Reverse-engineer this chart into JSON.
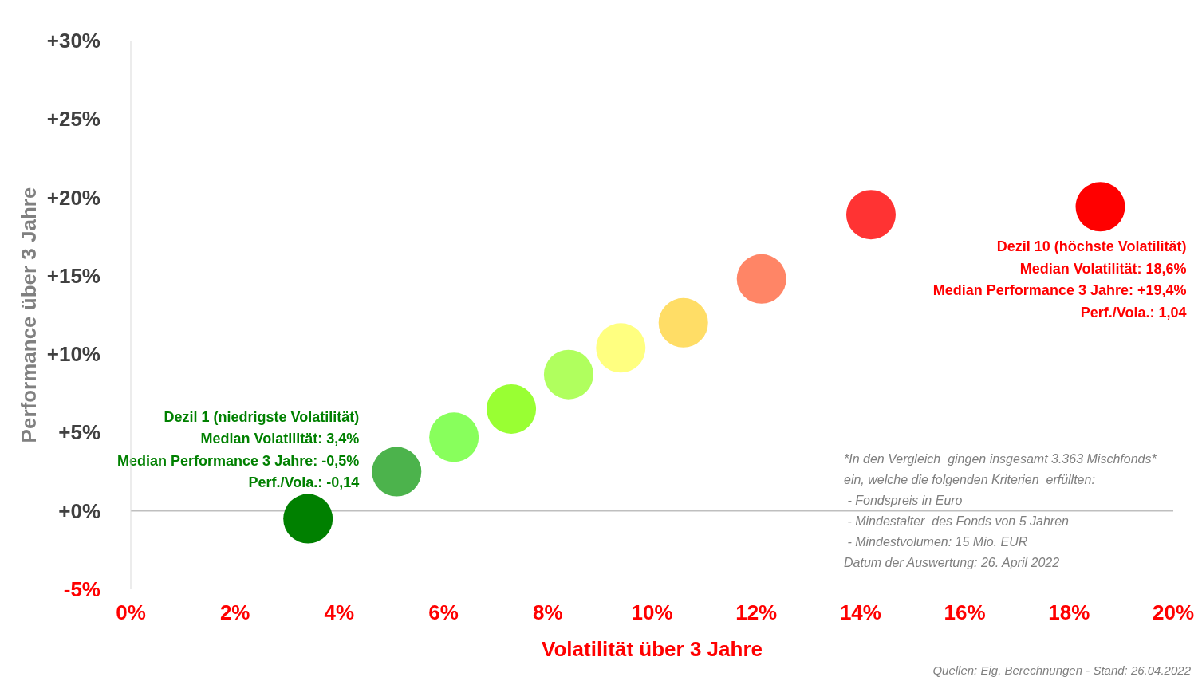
{
  "chart_data": {
    "type": "scatter",
    "xlabel": "Volatilität  über 3 Jahre",
    "ylabel": "Performance über 3 Jahre",
    "x": [
      3.4,
      5.1,
      6.2,
      7.3,
      8.4,
      9.4,
      10.6,
      12.1,
      14.2,
      18.6
    ],
    "series": [
      {
        "values": [
          -0.5,
          2.5,
          4.7,
          6.5,
          8.7,
          10.4,
          12.0,
          14.8,
          18.9,
          19.4
        ],
        "colors": [
          "#008000",
          "#4cb34c",
          "#88ff5c",
          "#99ff33",
          "#b0ff5e",
          "#ffff80",
          "#ffdd66",
          "#ff8566",
          "#ff3333",
          "#ff0000"
        ]
      }
    ],
    "marker": "circle",
    "xlim": [
      0,
      20
    ],
    "xticks": [
      {
        "value": 0,
        "label": "0%"
      },
      {
        "value": 2,
        "label": "2%"
      },
      {
        "value": 4,
        "label": "4%"
      },
      {
        "value": 6,
        "label": "6%"
      },
      {
        "value": 8,
        "label": "8%"
      },
      {
        "value": 10,
        "label": "10%"
      },
      {
        "value": 12,
        "label": "12%"
      },
      {
        "value": 14,
        "label": "14%"
      },
      {
        "value": 16,
        "label": "16%"
      },
      {
        "value": 18,
        "label": "18%"
      },
      {
        "value": 20,
        "label": "20%"
      }
    ],
    "ylim": [
      -5,
      30
    ],
    "yticks": [
      {
        "value": -5,
        "label": "-5%"
      },
      {
        "value": 0,
        "label": "+0%"
      },
      {
        "value": 5,
        "label": "+5%"
      },
      {
        "value": 10,
        "label": "+10%"
      },
      {
        "value": 15,
        "label": "+15%"
      },
      {
        "value": 20,
        "label": "+20%"
      },
      {
        "value": 25,
        "label": "+25%"
      },
      {
        "value": 30,
        "label": "+30%"
      }
    ],
    "ref_lines": [
      {
        "axis": "y",
        "value": 0,
        "color": "#bfbfbf"
      }
    ],
    "grid": false,
    "legend": false,
    "annotations": [
      {
        "text": "Dezil 1 (niedrigste Volatilität)\nMedian Volatilität: 3,4%\nMedian Performance 3 Jahre: -0,5%\nPerf./Vola.: -0,14",
        "x": 3.4,
        "y": -0.5
      },
      {
        "text": "Dezil 10 (höchste Volatilität)\nMedian Volatilität: 18,6%\nMedian Performance 3 Jahre: +19,4%\nPerf./Vola.: 1,04",
        "x": 18.6,
        "y": 19.4
      },
      "*In den Vergleich  gingen insgesamt 3.363 Mischfonds*\nein, welche die folgenden Kriterien  erfüllten:\n - Fondspreis in Euro\n - Mindestalter  des Fonds von 5 Jahren\n - Mindestvolumen: 15 Mio. EUR\nDatum der Auswertung: 26. April 2022",
      "Quellen: Eig. Berechnungen - Stand: 26.04.2022"
    ]
  }
}
